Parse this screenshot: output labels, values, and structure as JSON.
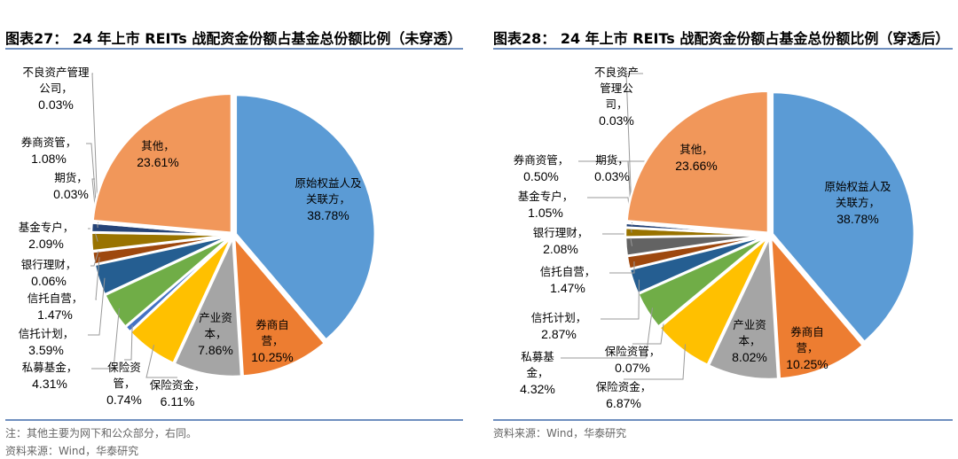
{
  "footer": {
    "note_left": "注：其他主要为网下和公众部分，右同。",
    "source_left": "资料来源：Wind，华泰研究",
    "source_right": "资料来源：Wind，华泰研究"
  },
  "chart_data": [
    {
      "type": "pie",
      "title": "图表27： 24 年上市 REITs 战配资金份额占基金总份额比例（未穿透）",
      "start": "12 o'clock, clockwise",
      "slices": [
        {
          "label": "原始权益人及关联方，",
          "value": 38.78,
          "value_label": "38.78%",
          "color": "#5B9BD5"
        },
        {
          "label": "券商自营，",
          "value": 10.25,
          "value_label": "10.25%",
          "color": "#ED7D31"
        },
        {
          "label": "产业资本，",
          "value": 7.86,
          "value_label": "7.86%",
          "color": "#A5A5A5"
        },
        {
          "label": "保险资金，",
          "value": 6.11,
          "value_label": "6.11%",
          "color": "#FFC000"
        },
        {
          "label": "保险资管，",
          "value": 0.74,
          "value_label": "0.74%",
          "color": "#4472C4"
        },
        {
          "label": "私募基金，",
          "value": 4.31,
          "value_label": "4.31%",
          "color": "#70AD47"
        },
        {
          "label": "信托计划，",
          "value": 3.59,
          "value_label": "3.59%",
          "color": "#255E91"
        },
        {
          "label": "信托自营，",
          "value": 1.47,
          "value_label": "1.47%",
          "color": "#9E480E"
        },
        {
          "label": "银行理财，",
          "value": 0.06,
          "value_label": "0.06%",
          "color": "#636363"
        },
        {
          "label": "基金专户，",
          "value": 2.09,
          "value_label": "2.09%",
          "color": "#997300"
        },
        {
          "label": "期货，",
          "value": 0.03,
          "value_label": "0.03%",
          "color": "#8FB1DB"
        },
        {
          "label": "券商资管，",
          "value": 1.08,
          "value_label": "1.08%",
          "color": "#264478"
        },
        {
          "label": "不良资产管理公司，",
          "value": 0.03,
          "value_label": "0.03%",
          "color": "#43682B"
        },
        {
          "label": "其他，",
          "value": 23.61,
          "value_label": "23.61%",
          "color": "#F1975A"
        }
      ]
    },
    {
      "type": "pie",
      "title": "图表28： 24 年上市 REITs 战配资金份额占基金总份额比例（穿透后）",
      "start": "12 o'clock, clockwise",
      "slices": [
        {
          "label": "原始权益人及关联方，",
          "value": 38.78,
          "value_label": "38.78%",
          "color": "#5B9BD5"
        },
        {
          "label": "券商自营，",
          "value": 10.25,
          "value_label": "10.25%",
          "color": "#ED7D31"
        },
        {
          "label": "产业资本，",
          "value": 8.02,
          "value_label": "8.02%",
          "color": "#A5A5A5"
        },
        {
          "label": "保险资金，",
          "value": 6.87,
          "value_label": "6.87%",
          "color": "#FFC000"
        },
        {
          "label": "保险资管，",
          "value": 0.07,
          "value_label": "0.07%",
          "color": "#4472C4"
        },
        {
          "label": "私募基金，",
          "value": 4.32,
          "value_label": "4.32%",
          "color": "#70AD47"
        },
        {
          "label": "信托计划，",
          "value": 2.87,
          "value_label": "2.87%",
          "color": "#255E91"
        },
        {
          "label": "信托自营，",
          "value": 1.47,
          "value_label": "1.47%",
          "color": "#9E480E"
        },
        {
          "label": "银行理财，",
          "value": 2.08,
          "value_label": "2.08%",
          "color": "#636363"
        },
        {
          "label": "基金专户，",
          "value": 1.05,
          "value_label": "1.05%",
          "color": "#997300"
        },
        {
          "label": "期货，",
          "value": 0.03,
          "value_label": "0.03%",
          "color": "#8FB1DB"
        },
        {
          "label": "券商资管，",
          "value": 0.5,
          "value_label": "0.50%",
          "color": "#264478"
        },
        {
          "label": "不良资产管理公司，",
          "value": 0.03,
          "value_label": "0.03%",
          "color": "#43682B"
        },
        {
          "label": "其他，",
          "value": 23.66,
          "value_label": "23.66%",
          "color": "#F1975A"
        }
      ]
    }
  ]
}
